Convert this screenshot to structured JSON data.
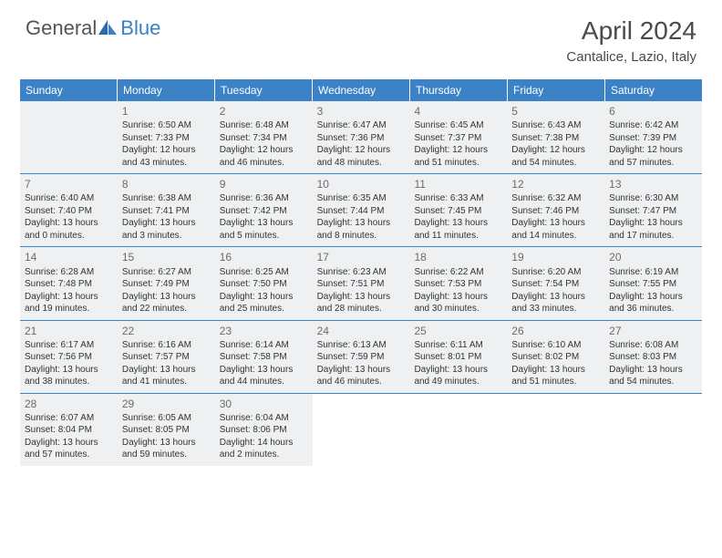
{
  "logo": {
    "general": "General",
    "blue": "Blue"
  },
  "title": "April 2024",
  "subtitle": "Cantalice, Lazio, Italy",
  "weekdays": [
    "Sunday",
    "Monday",
    "Tuesday",
    "Wednesday",
    "Thursday",
    "Friday",
    "Saturday"
  ],
  "colors": {
    "header_bg": "#3b82c7",
    "header_text": "#ffffff",
    "shaded_bg": "#eef0f2",
    "divider": "#3b82c7",
    "text": "#333333",
    "logo_gray": "#555555",
    "logo_blue": "#3b7fc4"
  },
  "weeks": [
    [
      {
        "num": "",
        "shaded": true
      },
      {
        "num": "1",
        "shaded": true,
        "sunrise": "Sunrise: 6:50 AM",
        "sunset": "Sunset: 7:33 PM",
        "daylight": "Daylight: 12 hours and 43 minutes."
      },
      {
        "num": "2",
        "shaded": true,
        "sunrise": "Sunrise: 6:48 AM",
        "sunset": "Sunset: 7:34 PM",
        "daylight": "Daylight: 12 hours and 46 minutes."
      },
      {
        "num": "3",
        "shaded": true,
        "sunrise": "Sunrise: 6:47 AM",
        "sunset": "Sunset: 7:36 PM",
        "daylight": "Daylight: 12 hours and 48 minutes."
      },
      {
        "num": "4",
        "shaded": true,
        "sunrise": "Sunrise: 6:45 AM",
        "sunset": "Sunset: 7:37 PM",
        "daylight": "Daylight: 12 hours and 51 minutes."
      },
      {
        "num": "5",
        "shaded": true,
        "sunrise": "Sunrise: 6:43 AM",
        "sunset": "Sunset: 7:38 PM",
        "daylight": "Daylight: 12 hours and 54 minutes."
      },
      {
        "num": "6",
        "shaded": true,
        "sunrise": "Sunrise: 6:42 AM",
        "sunset": "Sunset: 7:39 PM",
        "daylight": "Daylight: 12 hours and 57 minutes."
      }
    ],
    [
      {
        "num": "7",
        "shaded": true,
        "sunrise": "Sunrise: 6:40 AM",
        "sunset": "Sunset: 7:40 PM",
        "daylight": "Daylight: 13 hours and 0 minutes."
      },
      {
        "num": "8",
        "shaded": true,
        "sunrise": "Sunrise: 6:38 AM",
        "sunset": "Sunset: 7:41 PM",
        "daylight": "Daylight: 13 hours and 3 minutes."
      },
      {
        "num": "9",
        "shaded": true,
        "sunrise": "Sunrise: 6:36 AM",
        "sunset": "Sunset: 7:42 PM",
        "daylight": "Daylight: 13 hours and 5 minutes."
      },
      {
        "num": "10",
        "shaded": true,
        "sunrise": "Sunrise: 6:35 AM",
        "sunset": "Sunset: 7:44 PM",
        "daylight": "Daylight: 13 hours and 8 minutes."
      },
      {
        "num": "11",
        "shaded": true,
        "sunrise": "Sunrise: 6:33 AM",
        "sunset": "Sunset: 7:45 PM",
        "daylight": "Daylight: 13 hours and 11 minutes."
      },
      {
        "num": "12",
        "shaded": true,
        "sunrise": "Sunrise: 6:32 AM",
        "sunset": "Sunset: 7:46 PM",
        "daylight": "Daylight: 13 hours and 14 minutes."
      },
      {
        "num": "13",
        "shaded": true,
        "sunrise": "Sunrise: 6:30 AM",
        "sunset": "Sunset: 7:47 PM",
        "daylight": "Daylight: 13 hours and 17 minutes."
      }
    ],
    [
      {
        "num": "14",
        "shaded": true,
        "sunrise": "Sunrise: 6:28 AM",
        "sunset": "Sunset: 7:48 PM",
        "daylight": "Daylight: 13 hours and 19 minutes."
      },
      {
        "num": "15",
        "shaded": true,
        "sunrise": "Sunrise: 6:27 AM",
        "sunset": "Sunset: 7:49 PM",
        "daylight": "Daylight: 13 hours and 22 minutes."
      },
      {
        "num": "16",
        "shaded": true,
        "sunrise": "Sunrise: 6:25 AM",
        "sunset": "Sunset: 7:50 PM",
        "daylight": "Daylight: 13 hours and 25 minutes."
      },
      {
        "num": "17",
        "shaded": true,
        "sunrise": "Sunrise: 6:23 AM",
        "sunset": "Sunset: 7:51 PM",
        "daylight": "Daylight: 13 hours and 28 minutes."
      },
      {
        "num": "18",
        "shaded": true,
        "sunrise": "Sunrise: 6:22 AM",
        "sunset": "Sunset: 7:53 PM",
        "daylight": "Daylight: 13 hours and 30 minutes."
      },
      {
        "num": "19",
        "shaded": true,
        "sunrise": "Sunrise: 6:20 AM",
        "sunset": "Sunset: 7:54 PM",
        "daylight": "Daylight: 13 hours and 33 minutes."
      },
      {
        "num": "20",
        "shaded": true,
        "sunrise": "Sunrise: 6:19 AM",
        "sunset": "Sunset: 7:55 PM",
        "daylight": "Daylight: 13 hours and 36 minutes."
      }
    ],
    [
      {
        "num": "21",
        "shaded": true,
        "sunrise": "Sunrise: 6:17 AM",
        "sunset": "Sunset: 7:56 PM",
        "daylight": "Daylight: 13 hours and 38 minutes."
      },
      {
        "num": "22",
        "shaded": true,
        "sunrise": "Sunrise: 6:16 AM",
        "sunset": "Sunset: 7:57 PM",
        "daylight": "Daylight: 13 hours and 41 minutes."
      },
      {
        "num": "23",
        "shaded": true,
        "sunrise": "Sunrise: 6:14 AM",
        "sunset": "Sunset: 7:58 PM",
        "daylight": "Daylight: 13 hours and 44 minutes."
      },
      {
        "num": "24",
        "shaded": true,
        "sunrise": "Sunrise: 6:13 AM",
        "sunset": "Sunset: 7:59 PM",
        "daylight": "Daylight: 13 hours and 46 minutes."
      },
      {
        "num": "25",
        "shaded": true,
        "sunrise": "Sunrise: 6:11 AM",
        "sunset": "Sunset: 8:01 PM",
        "daylight": "Daylight: 13 hours and 49 minutes."
      },
      {
        "num": "26",
        "shaded": true,
        "sunrise": "Sunrise: 6:10 AM",
        "sunset": "Sunset: 8:02 PM",
        "daylight": "Daylight: 13 hours and 51 minutes."
      },
      {
        "num": "27",
        "shaded": true,
        "sunrise": "Sunrise: 6:08 AM",
        "sunset": "Sunset: 8:03 PM",
        "daylight": "Daylight: 13 hours and 54 minutes."
      }
    ],
    [
      {
        "num": "28",
        "shaded": true,
        "sunrise": "Sunrise: 6:07 AM",
        "sunset": "Sunset: 8:04 PM",
        "daylight": "Daylight: 13 hours and 57 minutes."
      },
      {
        "num": "29",
        "shaded": true,
        "sunrise": "Sunrise: 6:05 AM",
        "sunset": "Sunset: 8:05 PM",
        "daylight": "Daylight: 13 hours and 59 minutes."
      },
      {
        "num": "30",
        "shaded": true,
        "sunrise": "Sunrise: 6:04 AM",
        "sunset": "Sunset: 8:06 PM",
        "daylight": "Daylight: 14 hours and 2 minutes."
      },
      {
        "num": "",
        "shaded": false
      },
      {
        "num": "",
        "shaded": false
      },
      {
        "num": "",
        "shaded": false
      },
      {
        "num": "",
        "shaded": false
      }
    ]
  ]
}
